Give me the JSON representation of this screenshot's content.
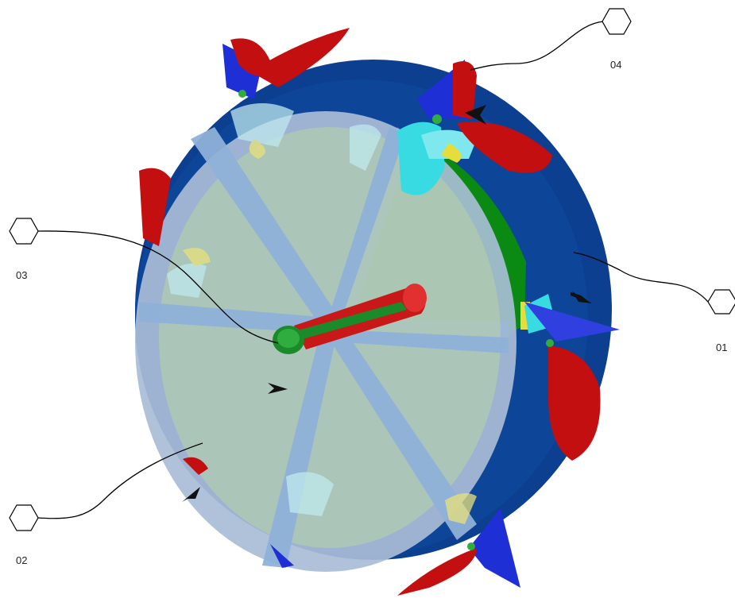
{
  "callouts": [
    {
      "id": "01",
      "label": "01"
    },
    {
      "id": "02",
      "label": "02"
    },
    {
      "id": "03",
      "label": "03"
    },
    {
      "id": "04",
      "label": "04"
    }
  ],
  "colors": {
    "ring_outer": "#0c3f8f",
    "ring_shade": "#0a3575",
    "cover": "#a9bdd6",
    "cover_spoke": "#8fb1d8",
    "interior_green": "#0a8a12",
    "interior_green_light": "#a7c98a",
    "rib_blue": "#2f78d8",
    "bracket_blue": "#1f2fd6",
    "blade_red": "#c40f10",
    "shaft_red": "#c81818",
    "shaft_green": "#1a8a2a",
    "cyan_part": "#39dbe2",
    "yellow_part": "#e6dc3a"
  }
}
